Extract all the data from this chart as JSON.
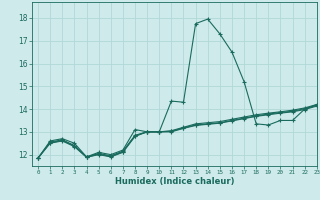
{
  "bg_color": "#ceeaea",
  "grid_color": "#b0d8d8",
  "line_color": "#1a6b5e",
  "xlabel": "Humidex (Indice chaleur)",
  "xlim": [
    -0.5,
    23
  ],
  "ylim": [
    11.5,
    18.7
  ],
  "yticks": [
    12,
    13,
    14,
    15,
    16,
    17,
    18
  ],
  "xticks": [
    0,
    1,
    2,
    3,
    4,
    5,
    6,
    7,
    8,
    9,
    10,
    11,
    12,
    13,
    14,
    15,
    16,
    17,
    18,
    19,
    20,
    21,
    22,
    23
  ],
  "lines": [
    [
      11.85,
      12.6,
      12.7,
      12.5,
      11.9,
      12.1,
      12.0,
      12.2,
      13.1,
      13.0,
      13.0,
      14.35,
      14.3,
      17.75,
      17.95,
      17.3,
      16.5,
      15.2,
      13.35,
      13.3,
      13.5,
      13.5,
      14.0,
      14.2
    ],
    [
      11.85,
      12.55,
      12.65,
      12.4,
      11.9,
      12.05,
      11.95,
      12.15,
      12.85,
      13.0,
      13.0,
      13.05,
      13.2,
      13.35,
      13.4,
      13.45,
      13.55,
      13.65,
      13.75,
      13.82,
      13.88,
      13.95,
      14.05,
      14.2
    ],
    [
      11.85,
      12.5,
      12.6,
      12.35,
      11.88,
      12.0,
      11.9,
      12.1,
      12.8,
      13.0,
      13.0,
      13.0,
      13.15,
      13.28,
      13.33,
      13.38,
      13.48,
      13.58,
      13.68,
      13.75,
      13.82,
      13.88,
      13.98,
      14.13
    ],
    [
      11.85,
      12.52,
      12.62,
      12.38,
      11.89,
      12.02,
      11.92,
      12.12,
      12.82,
      13.0,
      13.0,
      13.02,
      13.18,
      13.3,
      13.35,
      13.4,
      13.5,
      13.6,
      13.7,
      13.78,
      13.85,
      13.9,
      14.02,
      14.16
    ]
  ]
}
